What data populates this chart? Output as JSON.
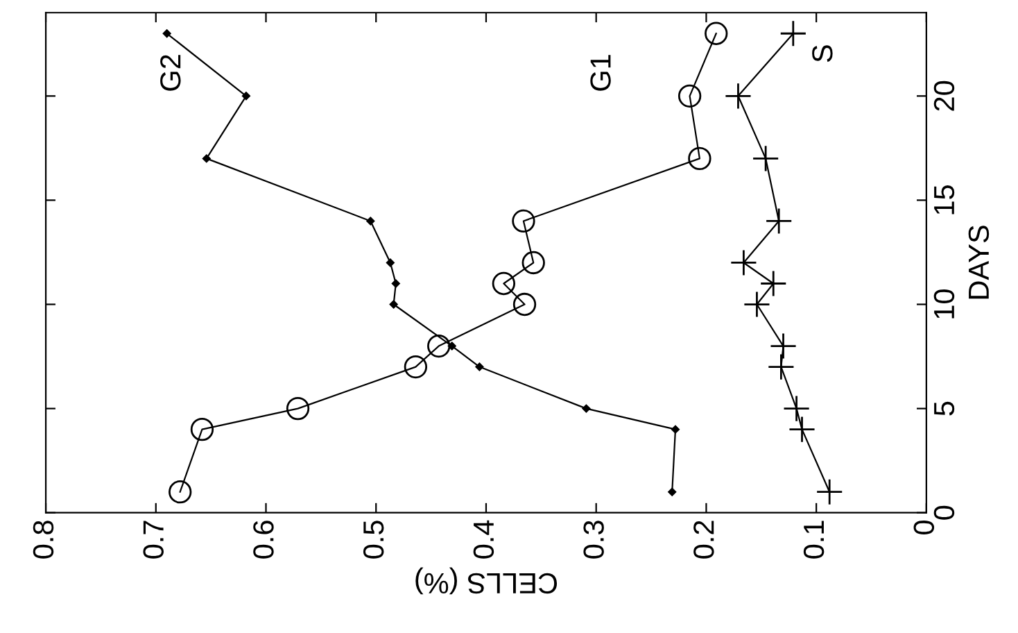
{
  "chart_data": {
    "type": "line",
    "xlabel": "CELLS (%)",
    "ylabel": "DAYS",
    "xlim": [
      0.8,
      0
    ],
    "xticks": [
      0.8,
      0.7,
      0.6,
      0.5,
      0.4,
      0.3,
      0.2,
      0.1,
      0
    ],
    "ylim": [
      0,
      24
    ],
    "yticks": [
      0,
      5,
      10,
      15,
      20
    ],
    "grid": false,
    "legend": "top",
    "line_style": "solid",
    "series": [
      {
        "name": "G1",
        "color": "#000000",
        "marker": "circle",
        "x": [
          0.678,
          0.658,
          0.571,
          0.464,
          0.443,
          0.365,
          0.384,
          0.357,
          0.366,
          0.206,
          0.215,
          0.191
        ],
        "values": [
          1,
          4,
          5,
          7,
          8,
          10,
          11,
          12,
          14,
          17,
          20,
          23
        ]
      },
      {
        "name": "G2",
        "color": "#000000",
        "marker": "diamond",
        "x": [
          0.231,
          0.228,
          0.309,
          0.406,
          0.431,
          0.484,
          0.482,
          0.487,
          0.505,
          0.654,
          0.618,
          0.69
        ],
        "values": [
          1,
          4,
          5,
          7,
          8,
          10,
          11,
          12,
          14,
          17,
          20,
          23
        ]
      },
      {
        "name": "S",
        "color": "#000000",
        "marker": "cross",
        "x": [
          0.088,
          0.113,
          0.118,
          0.132,
          0.13,
          0.154,
          0.139,
          0.166,
          0.134,
          0.146,
          0.171,
          0.121
        ],
        "values": [
          1,
          4,
          5,
          7,
          8,
          10,
          11,
          12,
          14,
          17,
          20,
          23
        ]
      }
    ]
  }
}
